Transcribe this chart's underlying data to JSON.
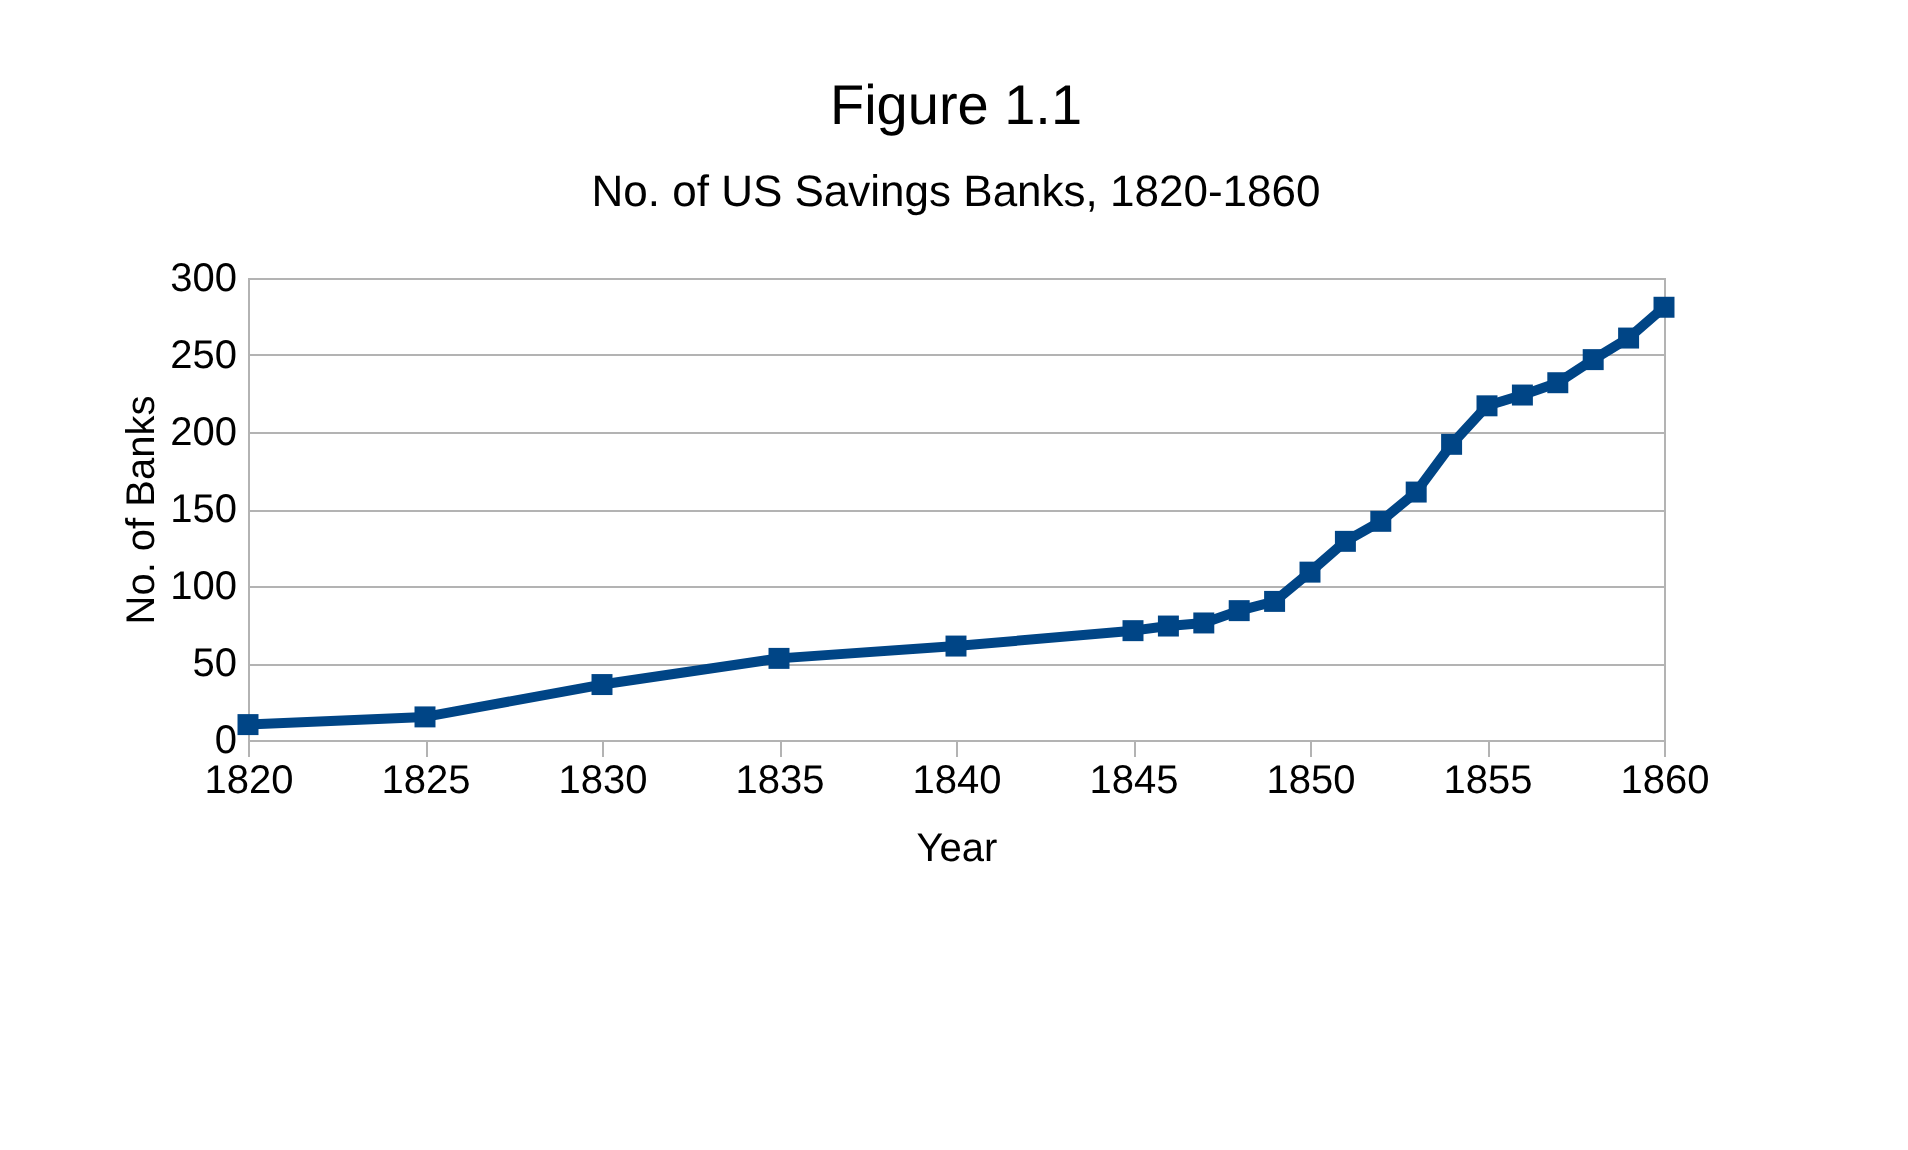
{
  "chart_data": {
    "type": "line",
    "title": "Figure 1.1",
    "subtitle": "No. of US Savings Banks, 1820-1860",
    "xlabel": "Year",
    "ylabel": "No. of Banks",
    "x": [
      1820,
      1825,
      1830,
      1835,
      1840,
      1845,
      1846,
      1847,
      1848,
      1849,
      1850,
      1851,
      1852,
      1853,
      1854,
      1855,
      1856,
      1857,
      1858,
      1859,
      1860
    ],
    "series": [
      {
        "color": "#004586",
        "values": [
          10,
          15,
          36,
          53,
          61,
          71,
          74,
          76,
          84,
          90,
          109,
          129,
          142,
          161,
          192,
          217,
          224,
          232,
          247,
          261,
          281
        ]
      }
    ],
    "xlim": [
      1820,
      1860
    ],
    "xticks": [
      1820,
      1825,
      1830,
      1835,
      1840,
      1845,
      1850,
      1855,
      1860
    ],
    "ylim": [
      0,
      300
    ],
    "yticks": [
      0,
      50,
      100,
      150,
      200,
      250,
      300
    ],
    "grid": "y",
    "marker": "square",
    "line_style": "solid"
  }
}
